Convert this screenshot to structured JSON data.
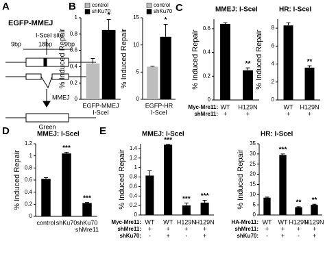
{
  "panel_labels": [
    "A",
    "B",
    "C",
    "D",
    "E"
  ],
  "diagram": {
    "title": "EGFP-MMEJ",
    "site": "I-SceI site",
    "segments": [
      "9bp",
      "18bp",
      "9bp"
    ],
    "pathway": "MMEJ",
    "product": "Green"
  },
  "chart_data": [
    {
      "type": "bar",
      "y_label": "% Induced Repair",
      "x_label": [
        "EGFP-MMEJ",
        "I-SceI"
      ],
      "ylim": [
        0,
        1
      ],
      "yticks": [
        0,
        0.2,
        0.4,
        0.6,
        0.8,
        1
      ],
      "series": [
        {
          "name": "control",
          "color": "#bdbdbd",
          "values": [
            0.44
          ],
          "errors": [
            0.06
          ],
          "stars": [
            null
          ]
        },
        {
          "name": "shKu70",
          "color": "#000000",
          "values": [
            0.85
          ],
          "errors": [
            0.13
          ],
          "stars": [
            "*"
          ]
        }
      ]
    },
    {
      "type": "bar",
      "y_label": "% Induced Repair",
      "x_label": [
        "EGFP-HR",
        "I-SceI"
      ],
      "ylim": [
        0,
        15
      ],
      "yticks": [
        0,
        5,
        10,
        15
      ],
      "series": [
        {
          "name": "control",
          "color": "#bdbdbd",
          "values": [
            6
          ],
          "errors": [
            0.1
          ],
          "stars": [
            null
          ]
        },
        {
          "name": "shKu70",
          "color": "#000000",
          "values": [
            11.5
          ],
          "errors": [
            2.3
          ],
          "stars": [
            "*"
          ]
        }
      ]
    },
    {
      "type": "bar",
      "title": "MMEJ: I-SceI",
      "y_label": "% Induced Repair",
      "ylim": [
        0,
        0.68
      ],
      "yticks": [
        0,
        0.2,
        0.4,
        0.6
      ],
      "color": "#000000",
      "values": [
        0.64,
        0.25
      ],
      "errors": [
        0.01,
        0.02
      ],
      "stars": [
        null,
        "**"
      ],
      "condition_rows": [
        {
          "name": "Myc-Mre11:",
          "labels": [
            "WT",
            "H129N"
          ]
        },
        {
          "name": "shMre11:",
          "labels": [
            "+",
            "+"
          ]
        }
      ]
    },
    {
      "type": "bar",
      "title": "HR: I-SceI",
      "y_label": "% Induced Repair",
      "ylim": [
        0,
        9
      ],
      "yticks": [
        0,
        2,
        4,
        6,
        8
      ],
      "color": "#000000",
      "values": [
        8.3,
        3.6
      ],
      "errors": [
        0.3,
        0.2
      ],
      "stars": [
        null,
        "**"
      ],
      "condition_rows": [
        {
          "labels": [
            "WT",
            "H129N"
          ]
        },
        {
          "labels": [
            "+",
            "+"
          ]
        }
      ]
    },
    {
      "type": "bar",
      "title": "MMEJ: I-SceI",
      "y_label": "% Induced Repair",
      "ylim": [
        0,
        1.2
      ],
      "yticks": [
        0,
        0.2,
        0.4,
        0.6,
        0.8,
        1,
        1.2
      ],
      "color": "#000000",
      "categories": [
        [
          "control"
        ],
        [
          "shKu70"
        ],
        [
          "shKu70",
          "shMre11"
        ]
      ],
      "values": [
        0.62,
        1.04,
        0.22
      ],
      "errors": [
        0.02,
        0.02,
        0.01
      ],
      "stars": [
        null,
        "***",
        "***"
      ]
    },
    {
      "type": "bar",
      "title": "MMEJ: I-SceI",
      "y_label": "% Induced Repair",
      "ylim": [
        0,
        1.5
      ],
      "yticks": [
        0,
        0.2,
        0.4,
        0.6,
        0.8,
        1,
        1.2,
        1.4
      ],
      "color": "#000000",
      "values": [
        0.83,
        1.48,
        0.2,
        0.26
      ],
      "errors": [
        0.1,
        0.01,
        0.05,
        0.05
      ],
      "stars": [
        null,
        "***",
        "***",
        "***"
      ],
      "condition_rows": [
        {
          "name": "Myc-Mre11:",
          "labels": [
            "WT",
            "WT",
            "H129N",
            "H129N"
          ]
        },
        {
          "name": "shMre11:",
          "labels": [
            "+",
            "+",
            "+",
            "+"
          ]
        },
        {
          "name": "shKu70:",
          "labels": [
            "-",
            "+",
            "-",
            "+"
          ]
        }
      ]
    },
    {
      "type": "bar",
      "title": "HR: I-SceI",
      "y_label": "% Induced Repair",
      "ylim": [
        0,
        35
      ],
      "yticks": [
        0,
        5,
        10,
        15,
        20,
        25,
        30,
        35
      ],
      "color": "#000000",
      "values": [
        8.5,
        29.5,
        3.8,
        5
      ],
      "errors": [
        0.3,
        0.5,
        0.3,
        0.3
      ],
      "stars": [
        null,
        "***",
        "**",
        "**"
      ],
      "condition_rows": [
        {
          "name": "HA-Mre11:",
          "labels": [
            "WT",
            "WT",
            "H129N",
            "H129N"
          ]
        },
        {
          "name": "shMre11:",
          "labels": [
            "+",
            "+",
            "+",
            "+"
          ]
        },
        {
          "name": "shKu70:",
          "labels": [
            "-",
            "+",
            "-",
            "+"
          ]
        }
      ]
    }
  ]
}
